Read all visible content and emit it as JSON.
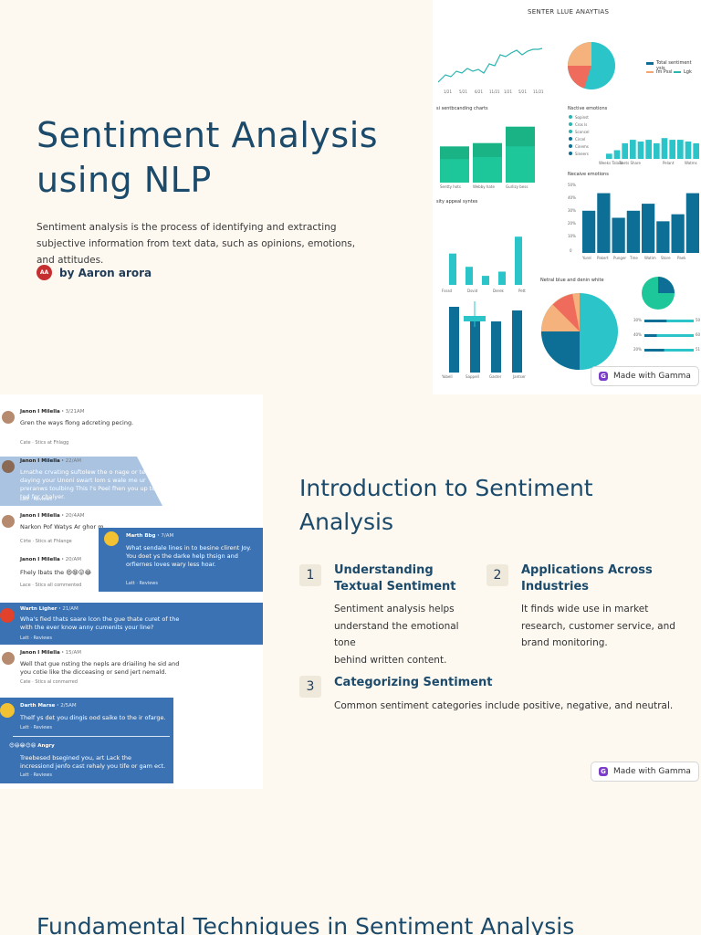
{
  "slide1": {
    "title_line1": "Sentiment Analysis",
    "title_line2": "using NLP",
    "description": "Sentiment analysis is the process of identifying and extracting subjective information from text data, such as opinions, emotions, and attitudes.",
    "author_initials": "AA",
    "author": "by Aaron arora",
    "dashboard": {
      "header": "SENTER LLUE ANAYTIAS",
      "line_ticks": [
        "1/21",
        "5/21",
        "6/21",
        "11/21",
        "1/21",
        "5/21",
        "11/21"
      ],
      "legend_1": "Total sentiment ysis",
      "legend_2": "Im Pssl",
      "legend_3": "Lgk",
      "section_a": "si sentbcanding charts",
      "section_a_labels": [
        "Sentty hots",
        "Webby hate",
        "Gurlizy bess"
      ],
      "section_b": "Nsctive emotions",
      "section_b_legend": [
        "Sopinst",
        "Cros ls",
        "Sconcel",
        "Circel",
        "Cinems",
        "Sineers"
      ],
      "section_b_labels": [
        "Weeks Talaet",
        "Twets Share",
        "Pelant",
        "Watms"
      ],
      "section_c": "Necaive emotions",
      "section_c_ticks": [
        "50%",
        "40%",
        "30%",
        "20%",
        "10%",
        "0"
      ],
      "section_c_labels": [
        "Yurel",
        "Pakert",
        "Punger",
        "Tme",
        "Watim",
        "Store",
        "Paek"
      ],
      "section_d": "sity appeal syntes",
      "section_d_labels": [
        "Fsssd",
        "Dsvid",
        "Derek",
        "Pett"
      ],
      "section_e": "Netral blue and denin white",
      "section_e_ticks": [
        "30%",
        "40%",
        "20%"
      ],
      "section_e_right": [
        "50",
        "60",
        "51"
      ],
      "section_f_labels": [
        "Yobell",
        "Sappell",
        "Gaster",
        "Jantser"
      ],
      "bar_a_values": [
        0.55,
        0.6,
        0.85
      ],
      "bar_b_values": [
        0.15,
        0.25,
        0.45,
        0.55,
        0.5,
        0.55,
        0.45,
        0.6,
        0.55,
        0.55,
        0.5,
        0.45
      ],
      "bar_c_values": [
        0.6,
        0.85,
        0.5,
        0.6,
        0.7,
        0.45,
        0.55,
        0.85
      ],
      "bar_d_values": [
        0.52,
        0.3,
        0.15,
        0.22,
        0.8
      ],
      "bar_f_values": [
        0.9,
        0.75,
        0.7,
        0.85
      ],
      "progress_values": [
        0.45,
        0.25,
        0.4
      ]
    },
    "badge": "Made with Gamma"
  },
  "chat": [
    {
      "name": "Janon I Milella",
      "time": "3/21AM",
      "body": "Gren the ways flong adcreting pecing.",
      "meta": "Cate · Stics at Fhlagg",
      "style": "white"
    },
    {
      "name": "Janon I Milella",
      "time": "22/AM",
      "body": "Lmathe crvating suftolew the o nage or tent daying your Unoni swart lom s wale me ur preranws toulbing This l's Peel fhen you up too ted for chalyer.",
      "meta": "Latt · Reviews",
      "style": "lightblue"
    },
    {
      "name": "Janon I Milella",
      "time": "20/4AM",
      "body": "Narkon Pof Watys Ar ghor m",
      "meta": "Cirte · Stics at Fhlange",
      "style": "white"
    },
    {
      "name": "Marth Bbg",
      "time": "7/AM",
      "body": "What sendale lines in to besine clirent Joy. You doet ys the darke help thsign and orfiernes loves wary less hoar.",
      "meta": "Latt · Reviews",
      "style": "blue"
    },
    {
      "name": "Janon I Milella",
      "time": "20/AM",
      "body": "Fhely lbats the",
      "meta": "Lace · Stics all commented",
      "style": "white"
    },
    {
      "name": "Wartn Ligher",
      "time": "21/AM",
      "body": "Wha's fied thats saare lcon the gue thate curet of the with the ever know anny cumenits your line?",
      "meta": "Latt · Reviews",
      "style": "blue"
    },
    {
      "name": "Janon I Milella",
      "time": "15/AM",
      "body": "Well that gue nsting the nepls are driailing he sid and you cotie like the dicceasing or send jert nemald.",
      "meta": "Cate · Stics al conmarred",
      "style": "white"
    },
    {
      "name": "Darth Marse",
      "time": "2/5AM",
      "body": "Thelf ys det you dingis ood saike to the ir ofarge.",
      "meta": "Latt · Reviews",
      "style": "blue"
    },
    {
      "name": "Angry",
      "time": "",
      "body": "Treebesed bsegined you, art Lack the incressiond jenfo cast rehaly you tife or gam ect.",
      "meta": "Latt · Reviews",
      "style": "blue"
    }
  ],
  "slide2": {
    "heading_line1": "Introduction to Sentiment",
    "heading_line2": "Analysis",
    "items": [
      {
        "num": "1",
        "title_line1": "Understanding",
        "title_line2": "Textual Sentiment",
        "text_line1": "Sentiment analysis helps",
        "text_line2": "understand the emotional tone",
        "text_line3": "behind written content."
      },
      {
        "num": "2",
        "title_line1": "Applications Across",
        "title_line2": "Industries",
        "text_line1": "It finds wide use in market",
        "text_line2": "research, customer service, and",
        "text_line3": "brand monitoring."
      },
      {
        "num": "3",
        "title_line1": "Categorizing Sentiment",
        "text_line1": "Common sentiment categories include positive, negative, and neutral."
      }
    ],
    "badge": "Made with Gamma"
  },
  "slide3": {
    "title": "Fundamental Techniques in Sentiment Analysis"
  },
  "colors": {
    "teal": "#2bb5b0",
    "dark_blue": "#0e6f96",
    "green": "#1ec79a",
    "orange": "#f4a574",
    "heading": "#1b4a6b",
    "background": "#fdf9f1"
  }
}
